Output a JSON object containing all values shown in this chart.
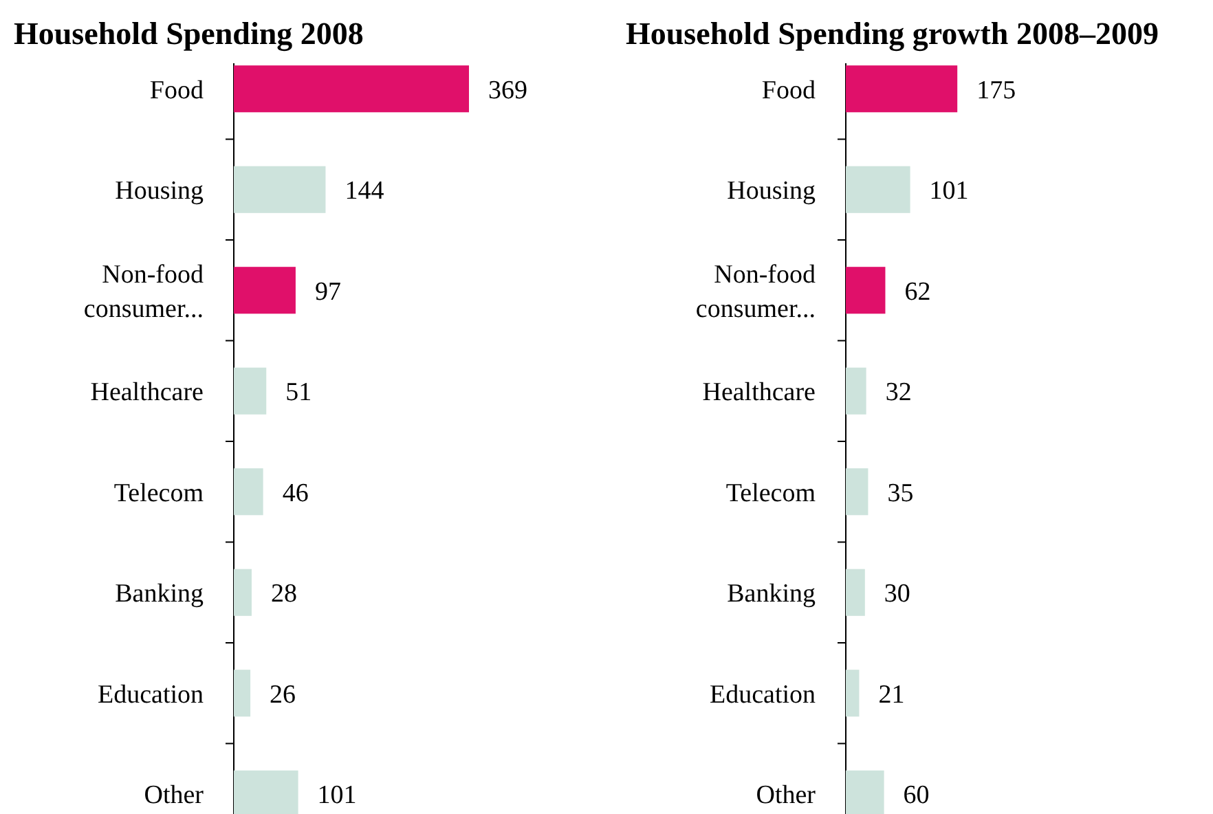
{
  "chart_data": [
    {
      "type": "bar",
      "orientation": "horizontal",
      "title": "Household Spending 2008",
      "categories": [
        "Food",
        "Housing",
        "Non-food consumer...",
        "Healthcare",
        "Telecom",
        "Banking",
        "Education",
        "Other"
      ],
      "values": [
        369,
        144,
        97,
        51,
        46,
        28,
        26,
        101
      ],
      "colors": [
        "#e0106a",
        "#cde3dc",
        "#e0106a",
        "#cde3dc",
        "#cde3dc",
        "#cde3dc",
        "#cde3dc",
        "#cde3dc"
      ],
      "data_labels": true
    },
    {
      "type": "bar",
      "orientation": "horizontal",
      "title": "Household Spending growth 2008–2009",
      "categories": [
        "Food",
        "Housing",
        "Non-food consumer...",
        "Healthcare",
        "Telecom",
        "Banking",
        "Education",
        "Other"
      ],
      "values": [
        175,
        101,
        62,
        32,
        35,
        30,
        21,
        60
      ],
      "colors": [
        "#e0106a",
        "#cde3dc",
        "#e0106a",
        "#cde3dc",
        "#cde3dc",
        "#cde3dc",
        "#cde3dc",
        "#cde3dc"
      ],
      "data_labels": true
    }
  ]
}
